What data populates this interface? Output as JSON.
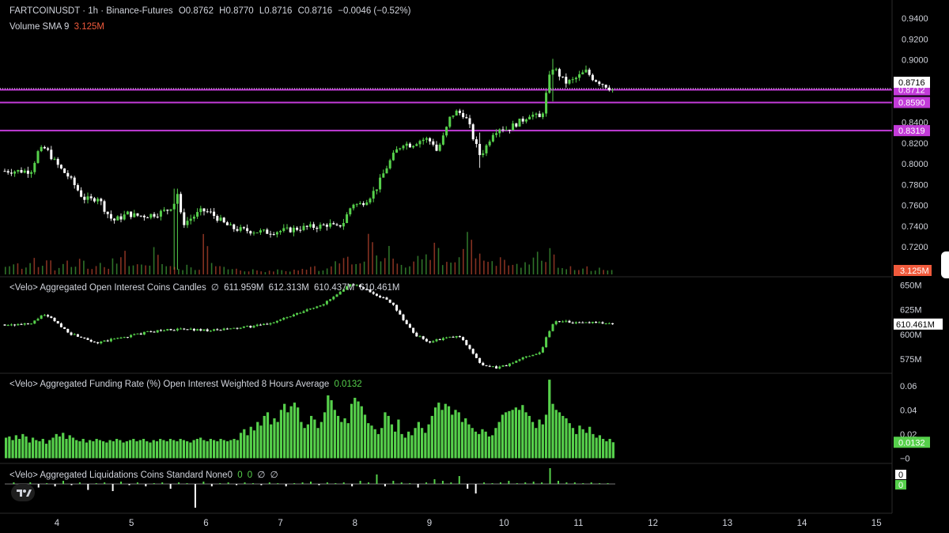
{
  "header": {
    "symbol": "FARTCOINUSDT · 1h · Binance-Futures",
    "o": "O0.8762",
    "h": "H0.8770",
    "l": "L0.8716",
    "c": "C0.8716",
    "change": "−0.0046 (−0.52%)",
    "volume_label": "Volume SMA 9",
    "volume_value": "3.125M"
  },
  "panes": {
    "oi": {
      "title": "<Velo> Aggregated Open Interest Coins Candles",
      "icon": "∅",
      "values": [
        "611.959M",
        "612.313M",
        "610.437M",
        "610.461M"
      ]
    },
    "funding": {
      "title": "<Velo> Aggregated Funding Rate (%) Open Interest Weighted 8 Hours Average",
      "value": "0.0132"
    },
    "liq": {
      "title": "<Velo> Aggregated Liquidations Coins Standard None",
      "values": [
        "0",
        "0",
        "0"
      ],
      "icons": [
        "∅",
        "∅"
      ]
    }
  },
  "colors": {
    "up": "#56d04b",
    "down": "#f05a3c",
    "level": "#c33bd9",
    "bg": "#000000"
  },
  "chart_data": [
    {
      "type": "candlestick",
      "title": "FARTCOINUSDT · 1h · Binance-Futures",
      "x_ticks": [
        "4",
        "5",
        "6",
        "7",
        "8",
        "9",
        "10",
        "11",
        "12",
        "13",
        "14",
        "15"
      ],
      "y_ticks": [
        0.7,
        0.72,
        0.74,
        0.76,
        0.78,
        0.8,
        0.82,
        0.84,
        0.86,
        0.88,
        0.9,
        0.92,
        0.94
      ],
      "y_tick_labels": [
        "0.7000",
        "0.7200",
        "0.7400",
        "0.7600",
        "0.7800",
        "0.8000",
        "0.8200",
        "0.8400",
        "0.8600",
        "0.8800",
        "0.9000",
        "0.9200",
        "0.9400"
      ],
      "ylim": [
        0.6934,
        0.9554
      ],
      "last_price": "0.8716",
      "horizontal_levels": [
        {
          "value": 0.8712,
          "label": "0.8712"
        },
        {
          "value": 0.859,
          "label": "0.8590"
        },
        {
          "value": 0.8319,
          "label": "0.8319"
        }
      ],
      "close_path": [
        [
          3.65,
          0.793
        ],
        [
          3.75,
          0.812
        ],
        [
          3.85,
          0.815
        ],
        [
          3.95,
          0.804
        ],
        [
          4.05,
          0.795
        ],
        [
          4.15,
          0.788
        ],
        [
          4.25,
          0.778
        ],
        [
          4.35,
          0.767
        ],
        [
          4.45,
          0.765
        ],
        [
          4.55,
          0.768
        ],
        [
          4.65,
          0.755
        ],
        [
          4.75,
          0.745
        ],
        [
          4.85,
          0.748
        ],
        [
          4.95,
          0.752
        ],
        [
          5.05,
          0.75
        ],
        [
          5.2,
          0.75
        ],
        [
          5.35,
          0.752
        ],
        [
          5.5,
          0.756
        ],
        [
          5.6,
          0.765
        ],
        [
          5.62,
          0.772
        ],
        [
          5.68,
          0.742
        ],
        [
          5.75,
          0.745
        ],
        [
          5.85,
          0.75
        ],
        [
          5.95,
          0.755
        ],
        [
          6.05,
          0.753
        ],
        [
          6.15,
          0.748
        ],
        [
          6.25,
          0.742
        ],
        [
          6.35,
          0.738
        ],
        [
          6.5,
          0.736
        ],
        [
          6.65,
          0.735
        ],
        [
          6.8,
          0.734
        ],
        [
          6.95,
          0.735
        ],
        [
          7.1,
          0.736
        ],
        [
          7.25,
          0.738
        ],
        [
          7.4,
          0.739
        ],
        [
          7.55,
          0.74
        ],
        [
          7.65,
          0.742
        ],
        [
          7.75,
          0.738
        ],
        [
          7.85,
          0.744
        ],
        [
          7.92,
          0.755
        ],
        [
          7.97,
          0.762
        ],
        [
          8.05,
          0.76
        ],
        [
          8.15,
          0.765
        ],
        [
          8.22,
          0.77
        ],
        [
          8.3,
          0.778
        ],
        [
          8.38,
          0.79
        ],
        [
          8.45,
          0.8
        ],
        [
          8.55,
          0.812
        ],
        [
          8.65,
          0.82
        ],
        [
          8.75,
          0.818
        ],
        [
          8.85,
          0.822
        ],
        [
          8.95,
          0.824
        ],
        [
          9.05,
          0.82
        ],
        [
          9.1,
          0.812
        ],
        [
          9.2,
          0.828
        ],
        [
          9.28,
          0.845
        ],
        [
          9.35,
          0.85
        ],
        [
          9.45,
          0.848
        ],
        [
          9.52,
          0.84
        ],
        [
          9.6,
          0.822
        ],
        [
          9.68,
          0.808
        ],
        [
          9.75,
          0.815
        ],
        [
          9.85,
          0.83
        ],
        [
          9.95,
          0.835
        ],
        [
          10.05,
          0.833
        ],
        [
          10.15,
          0.838
        ],
        [
          10.25,
          0.842
        ],
        [
          10.35,
          0.848
        ],
        [
          10.45,
          0.845
        ],
        [
          10.5,
          0.843
        ],
        [
          10.55,
          0.86
        ],
        [
          10.6,
          0.88
        ],
        [
          10.65,
          0.893
        ],
        [
          10.72,
          0.888
        ],
        [
          10.82,
          0.878
        ],
        [
          10.92,
          0.88
        ],
        [
          11.02,
          0.885
        ],
        [
          11.1,
          0.889
        ],
        [
          11.2,
          0.882
        ],
        [
          11.3,
          0.878
        ],
        [
          11.4,
          0.874
        ],
        [
          11.45,
          0.8716
        ]
      ],
      "spikes": [
        [
          5.6,
          0.698,
          0.776
        ],
        [
          10.65,
          0.86,
          0.901
        ],
        [
          9.68,
          0.796,
          0.83
        ]
      ]
    },
    {
      "type": "bar",
      "title": "Volume SMA 9",
      "last_value": "3.125M",
      "values_relative": [
        0.18,
        0.35,
        0.16,
        0.4,
        0.22,
        0.5,
        0.14,
        0.3,
        0.2,
        0.45,
        0.12,
        0.25,
        0.18,
        0.38,
        0.55,
        0.22,
        0.3,
        0.2,
        0.65,
        0.28,
        0.18,
        0.12,
        0.22,
        0.16,
        1.0,
        0.24,
        0.18,
        0.12,
        0.14,
        0.1,
        0.12,
        0.08,
        0.1,
        0.14,
        0.1,
        0.12,
        0.16,
        0.2,
        0.12,
        0.18,
        0.28,
        0.4,
        0.22,
        0.35,
        0.85,
        0.45,
        0.6,
        0.38,
        0.25,
        0.3,
        0.5,
        0.42,
        0.7,
        0.35,
        0.28,
        0.55,
        0.9,
        0.45,
        0.32,
        0.28,
        0.4,
        0.3,
        0.25,
        0.35,
        0.6,
        0.3,
        0.55,
        0.22,
        0.18,
        0.14,
        0.2,
        0.12,
        0.16,
        0.1
      ]
    },
    {
      "type": "candlestick",
      "title": "<Velo> Aggregated Open Interest Coins Candles",
      "y_tick_labels": [
        "650M",
        "625M",
        "600M",
        "575M"
      ],
      "y_ticks": [
        650,
        625,
        600,
        575
      ],
      "ylim": [
        562,
        657
      ],
      "last_value": "610.461M",
      "close_path": [
        [
          3.65,
          610
        ],
        [
          3.8,
          620
        ],
        [
          3.95,
          615
        ],
        [
          4.05,
          608
        ],
        [
          4.2,
          600
        ],
        [
          4.35,
          597
        ],
        [
          4.55,
          591
        ],
        [
          4.75,
          595
        ],
        [
          4.95,
          598
        ],
        [
          5.2,
          602
        ],
        [
          5.5,
          605
        ],
        [
          5.8,
          605
        ],
        [
          6.1,
          604
        ],
        [
          6.4,
          606
        ],
        [
          6.8,
          610
        ],
        [
          7.2,
          620
        ],
        [
          7.6,
          632
        ],
        [
          7.85,
          645
        ],
        [
          7.95,
          652
        ],
        [
          8.1,
          647
        ],
        [
          8.3,
          640
        ],
        [
          8.5,
          632
        ],
        [
          8.65,
          615
        ],
        [
          8.8,
          600
        ],
        [
          9.0,
          592
        ],
        [
          9.2,
          596
        ],
        [
          9.4,
          598
        ],
        [
          9.55,
          585
        ],
        [
          9.7,
          568
        ],
        [
          9.9,
          566
        ],
        [
          10.1,
          570
        ],
        [
          10.3,
          578
        ],
        [
          10.5,
          582
        ],
        [
          10.58,
          600
        ],
        [
          10.68,
          613
        ],
        [
          10.8,
          614
        ],
        [
          11.0,
          611
        ],
        [
          11.2,
          613
        ],
        [
          11.45,
          610
        ]
      ]
    },
    {
      "type": "bar",
      "title": "<Velo> Aggregated Funding Rate (%) Open Interest Weighted 8 Hours Average",
      "y_ticks": [
        0.06,
        0.04,
        0.02,
        0
      ],
      "y_tick_labels": [
        "0.06",
        "0.04",
        "0.02",
        "−0"
      ],
      "ylim": [
        -0.003,
        0.069
      ],
      "last_value": "0.0132",
      "values": [
        0.017,
        0.018,
        0.015,
        0.019,
        0.016,
        0.02,
        0.018,
        0.013,
        0.017,
        0.015,
        0.014,
        0.016,
        0.012,
        0.015,
        0.017,
        0.02,
        0.018,
        0.021,
        0.016,
        0.019,
        0.017,
        0.015,
        0.014,
        0.016,
        0.013,
        0.015,
        0.014,
        0.016,
        0.015,
        0.014,
        0.013,
        0.015,
        0.014,
        0.016,
        0.015,
        0.013,
        0.014,
        0.015,
        0.016,
        0.014,
        0.015,
        0.016,
        0.014,
        0.013,
        0.015,
        0.014,
        0.016,
        0.015,
        0.014,
        0.016,
        0.015,
        0.014,
        0.016,
        0.015,
        0.014,
        0.013,
        0.015,
        0.016,
        0.017,
        0.015,
        0.014,
        0.016,
        0.015,
        0.014,
        0.016,
        0.015,
        0.014,
        0.015,
        0.016,
        0.015,
        0.021,
        0.024,
        0.019,
        0.026,
        0.023,
        0.03,
        0.027,
        0.035,
        0.038,
        0.028,
        0.033,
        0.03,
        0.04,
        0.045,
        0.038,
        0.043,
        0.046,
        0.042,
        0.03,
        0.025,
        0.028,
        0.035,
        0.032,
        0.025,
        0.03,
        0.038,
        0.052,
        0.048,
        0.04,
        0.035,
        0.03,
        0.033,
        0.029,
        0.045,
        0.05,
        0.047,
        0.043,
        0.036,
        0.029,
        0.027,
        0.024,
        0.02,
        0.025,
        0.038,
        0.035,
        0.028,
        0.022,
        0.032,
        0.02,
        0.017,
        0.022,
        0.019,
        0.025,
        0.03,
        0.025,
        0.021,
        0.028,
        0.035,
        0.042,
        0.046,
        0.04,
        0.045,
        0.043,
        0.036,
        0.04,
        0.038,
        0.03,
        0.033,
        0.028,
        0.025,
        0.022,
        0.02,
        0.024,
        0.022,
        0.018,
        0.019,
        0.025,
        0.03,
        0.036,
        0.038,
        0.039,
        0.04,
        0.042,
        0.04,
        0.044,
        0.038,
        0.035,
        0.03,
        0.025,
        0.032,
        0.028,
        0.036,
        0.065,
        0.045,
        0.04,
        0.038,
        0.035,
        0.033,
        0.029,
        0.025,
        0.02,
        0.027,
        0.024,
        0.021,
        0.026,
        0.02,
        0.017,
        0.019,
        0.016,
        0.014,
        0.016,
        0.0132
      ]
    },
    {
      "type": "bar",
      "title": "<Velo> Aggregated Liquidations Coins Standard None",
      "y_tick_labels": [
        "0",
        "0"
      ],
      "values_relative": [
        0,
        0.1,
        -0.2,
        0.1,
        -0.15,
        0.05,
        -0.1,
        0.2,
        -0.05,
        0.1,
        -0.25,
        0.05,
        0.1,
        -0.3,
        0.15,
        -0.05,
        0.1,
        -0.1,
        0.05,
        0.1,
        -0.2,
        0.1,
        0.05,
        -1.0,
        0.15,
        -0.1,
        0.05,
        0.1,
        -0.05,
        0.1,
        0.05,
        -0.05,
        0.1,
        0.05,
        -0.1,
        0.05,
        0.1,
        0.15,
        -0.05,
        0.1,
        0.05,
        0.1,
        -0.1,
        0.2,
        0.1,
        0.6,
        -0.1,
        0.2,
        0.1,
        0.05,
        -0.15,
        0.1,
        0.3,
        0.2,
        0.1,
        0.5,
        -0.2,
        -0.4,
        0.1,
        0.05,
        0.1,
        0.2,
        0.05,
        0.1,
        0.15,
        0.1,
        1.0,
        0.2,
        0.1,
        0.1,
        0.05,
        0.1,
        0.05,
        0.05
      ]
    }
  ]
}
